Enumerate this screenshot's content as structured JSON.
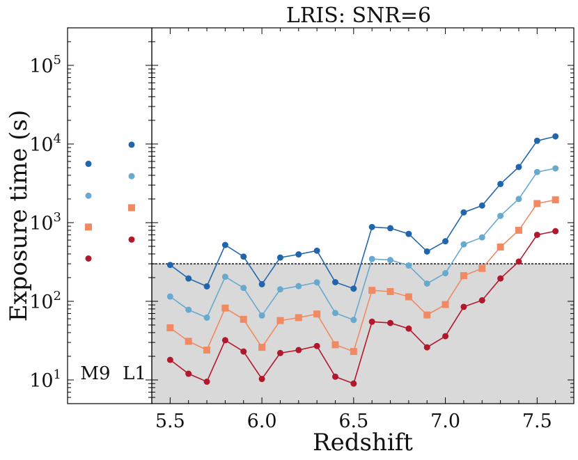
{
  "chart_data": {
    "type": "line",
    "title": "LRIS: SNR=6",
    "xlabel": "Redshift",
    "ylabel": "Exposure time (s)",
    "y_scale": "log",
    "xlim": [
      5.4,
      7.7
    ],
    "ylim": [
      5,
      300000
    ],
    "x_ticks": [
      5.5,
      6.0,
      6.5,
      7.0,
      7.5
    ],
    "x_tick_labels": [
      "5.5",
      "6.0",
      "6.5",
      "7.0",
      "7.5"
    ],
    "y_tick_labels": [
      {
        "base": "10",
        "exp": "1",
        "value": 10
      },
      {
        "base": "10",
        "exp": "2",
        "value": 100
      },
      {
        "base": "10",
        "exp": "3",
        "value": 1000
      },
      {
        "base": "10",
        "exp": "4",
        "value": 10000
      },
      {
        "base": "10",
        "exp": "5",
        "value": 100000
      }
    ],
    "threshold": {
      "value": 300,
      "style": "dashed",
      "shaded_below": true
    },
    "grid": false,
    "x": [
      5.5,
      5.6,
      5.7,
      5.8,
      5.9,
      6.0,
      6.1,
      6.2,
      6.3,
      6.4,
      6.5,
      6.6,
      6.7,
      6.8,
      6.9,
      7.0,
      7.1,
      7.2,
      7.3,
      7.4,
      7.5,
      7.6
    ],
    "series": [
      {
        "color": "#2166ac",
        "marker": "circle",
        "values": [
          290,
          195,
          155,
          520,
          370,
          165,
          360,
          395,
          440,
          175,
          145,
          880,
          850,
          720,
          430,
          580,
          1350,
          1650,
          3100,
          5100,
          11000,
          12500
        ]
      },
      {
        "color": "#67a9cf",
        "marker": "circle",
        "values": [
          115,
          78,
          62,
          205,
          148,
          66,
          142,
          156,
          174,
          71,
          58,
          345,
          335,
          285,
          168,
          228,
          530,
          650,
          1220,
          2000,
          4400,
          4900
        ]
      },
      {
        "color": "#ef8a62",
        "marker": "square",
        "values": [
          46,
          31,
          24,
          82,
          59,
          26,
          57,
          62,
          69,
          28,
          23,
          138,
          133,
          114,
          67,
          91,
          212,
          262,
          490,
          800,
          1750,
          1950
        ]
      },
      {
        "color": "#b2182b",
        "marker": "circle",
        "values": [
          18,
          12,
          9.5,
          32,
          23,
          10.3,
          22,
          24,
          27,
          11,
          9,
          55,
          53,
          45,
          26,
          36,
          85,
          103,
          195,
          320,
          700,
          780
        ]
      }
    ],
    "side_panel": {
      "groups": [
        {
          "label": "M9",
          "values": [
            5600,
            2200,
            880,
            350
          ]
        },
        {
          "label": "L1",
          "values": [
            9800,
            3900,
            1550,
            610
          ]
        }
      ]
    },
    "colors": [
      "#2166ac",
      "#67a9cf",
      "#ef8a62",
      "#b2182b"
    ]
  }
}
